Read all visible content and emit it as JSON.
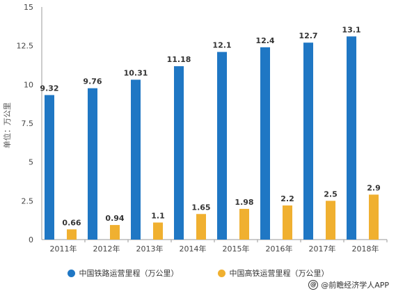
{
  "chart_data": {
    "type": "bar",
    "ylabel": "单位：万公里",
    "ylim": [
      0,
      15
    ],
    "yticks": [
      "0",
      "2.5",
      "5",
      "7.5",
      "10",
      "12.5",
      "15"
    ],
    "categories": [
      "2011年",
      "2012年",
      "2013年",
      "2014年",
      "2015年",
      "2016年",
      "2017年",
      "2018年"
    ],
    "series": [
      {
        "name": "中国铁路运营里程（万公里）",
        "color": "#1f77c4",
        "values": [
          9.32,
          9.76,
          10.31,
          11.18,
          12.1,
          12.4,
          12.7,
          13.1
        ],
        "labels": [
          "9.32",
          "9.76",
          "10.31",
          "11.18",
          "12.1",
          "12.4",
          "12.7",
          "13.1"
        ]
      },
      {
        "name": "中国高铁运营里程（万公里）",
        "color": "#f0b030",
        "values": [
          0.66,
          0.94,
          1.1,
          1.65,
          1.98,
          2.2,
          2.5,
          2.9
        ],
        "labels": [
          "0.66",
          "0.94",
          "1.1",
          "1.65",
          "1.98",
          "2.2",
          "2.5",
          "2.9"
        ]
      }
    ],
    "grid": false,
    "legend_position": "bottom"
  },
  "credit": {
    "icon": "weibo-icon",
    "text": "@前瞻经济学人APP"
  }
}
